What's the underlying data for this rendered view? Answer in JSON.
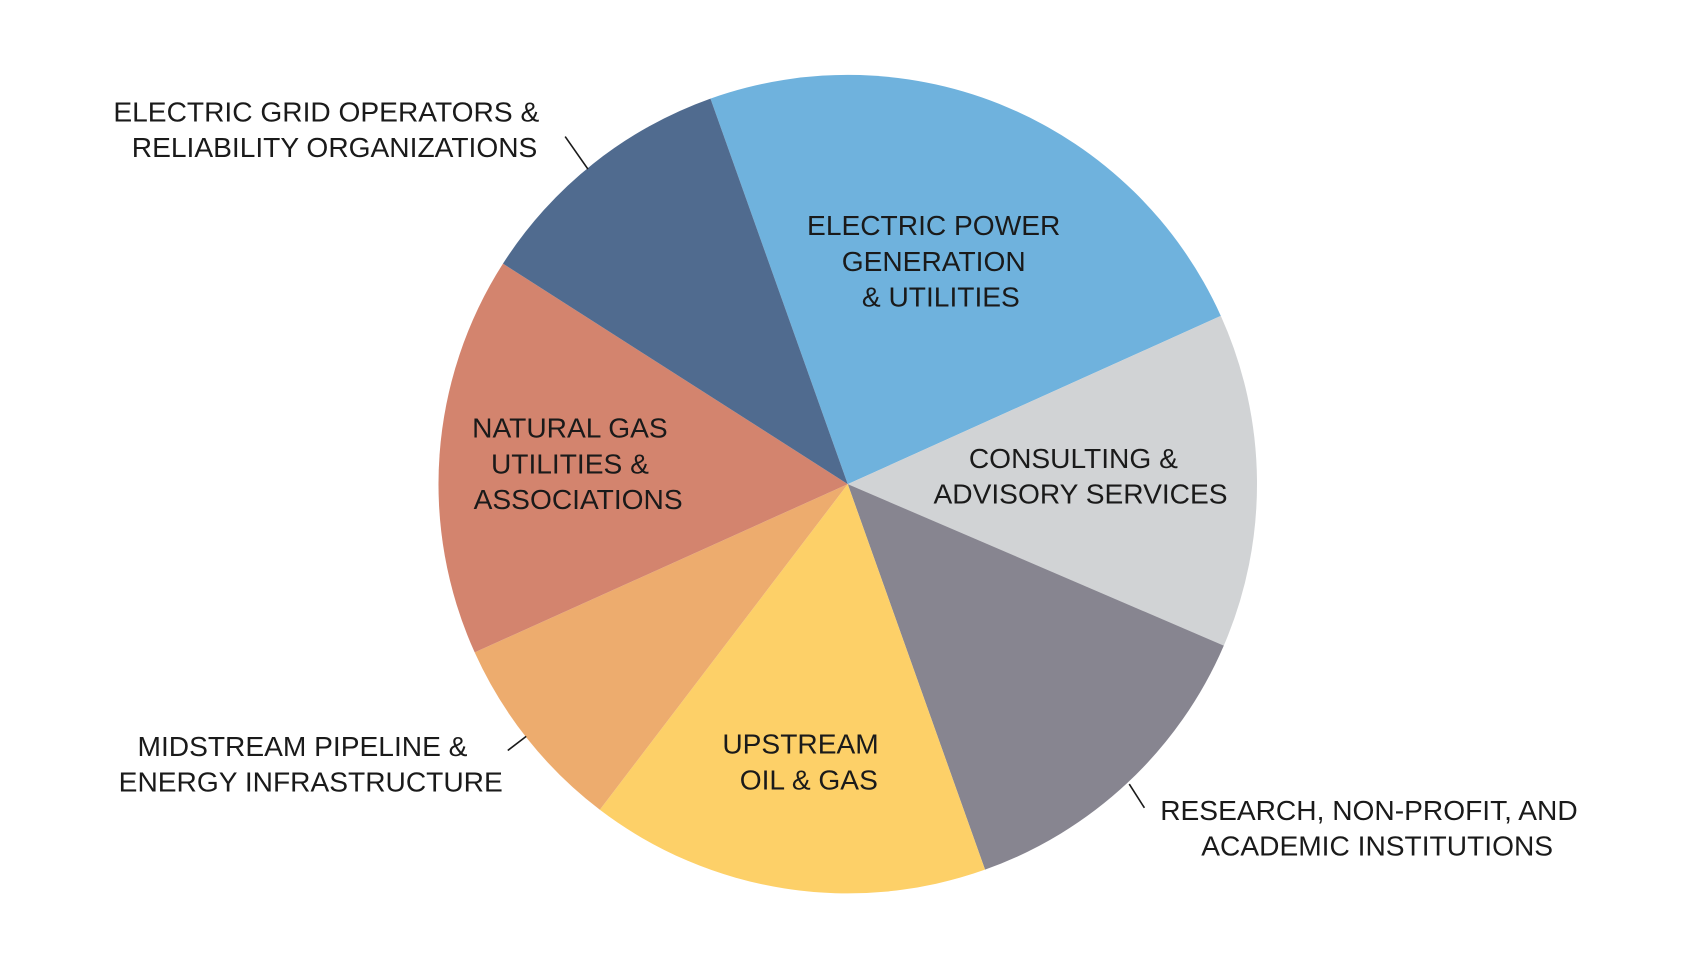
{
  "chart_data": {
    "type": "pie",
    "title": "",
    "start_angle_deg": 340.4,
    "direction": "clockwise",
    "slices": [
      {
        "label": "ELECTRIC POWER GENERATION & UTILITIES",
        "lines": [
          "ELECTRIC POWER",
          "GENERATION",
          "& UTILITIES"
        ],
        "value": 23.7,
        "color": "#6FB2DD",
        "label_position": "inside"
      },
      {
        "label": "CONSULTING & ADVISORY SERVICES",
        "lines": [
          "CONSULTING &",
          "ADVISORY SERVICES"
        ],
        "value": 13.2,
        "color": "#D1D3D5",
        "label_position": "inside"
      },
      {
        "label": "RESEARCH, NON-PROFIT, AND ACADEMIC INSTITUTIONS",
        "lines": [
          "RESEARCH, NON-PROFIT, AND",
          "ACADEMIC INSTITUTIONS"
        ],
        "value": 13.1,
        "color": "#878590",
        "label_position": "outside"
      },
      {
        "label": "UPSTREAM OIL & GAS",
        "lines": [
          "UPSTREAM",
          "OIL & GAS"
        ],
        "value": 15.8,
        "color": "#FDD068",
        "label_position": "inside"
      },
      {
        "label": "MIDSTREAM PIPELINE & ENERGY INFRASTRUCTURE",
        "lines": [
          "MIDSTREAM PIPELINE &",
          "ENERGY INFRASTRUCTURE"
        ],
        "value": 7.9,
        "color": "#EDAC6E",
        "label_position": "outside"
      },
      {
        "label": "NATURAL GAS UTILITIES & ASSOCIATIONS",
        "lines": [
          "NATURAL GAS",
          "UTILITIES &",
          "ASSOCIATIONS"
        ],
        "value": 15.8,
        "color": "#D3846E",
        "label_position": "inside"
      },
      {
        "label": "ELECTRIC GRID OPERATORS & RELIABILITY ORGANIZATIONS",
        "lines": [
          "ELECTRIC GRID OPERATORS &",
          "RELIABILITY ORGANIZATIONS"
        ],
        "value": 10.5,
        "color": "#506B8F",
        "label_position": "outside"
      }
    ]
  }
}
